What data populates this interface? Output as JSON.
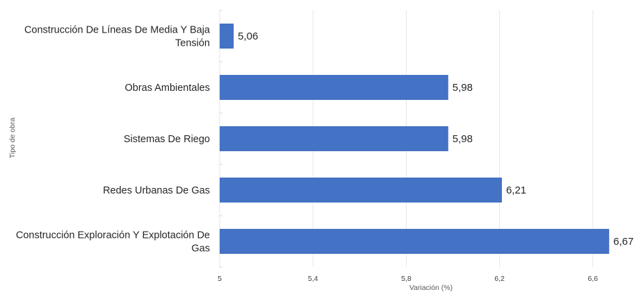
{
  "chart_data": {
    "type": "bar",
    "orientation": "horizontal",
    "categories": [
      [
        "Construcción De Líneas De Media Y Baja",
        "Tensión"
      ],
      [
        "Obras Ambientales"
      ],
      [
        "Sistemas De Riego"
      ],
      [
        "Redes Urbanas De Gas"
      ],
      [
        "Construcción Exploración Y Explotación De",
        "Gas"
      ]
    ],
    "values": [
      5.06,
      5.98,
      5.98,
      6.21,
      6.67
    ],
    "value_labels": [
      "5,06",
      "5,98",
      "5,98",
      "6,21",
      "6,67"
    ],
    "xlabel": "Variación (%)",
    "ylabel": "Tipo de obra",
    "xlim": [
      5,
      6.67
    ],
    "xticks": [
      5,
      5.4,
      5.8,
      6.2,
      6.6
    ],
    "xtick_labels": [
      "5",
      "5,4",
      "5,8",
      "6,2",
      "6,6"
    ],
    "bar_color": "#4472c4",
    "grid": true
  }
}
